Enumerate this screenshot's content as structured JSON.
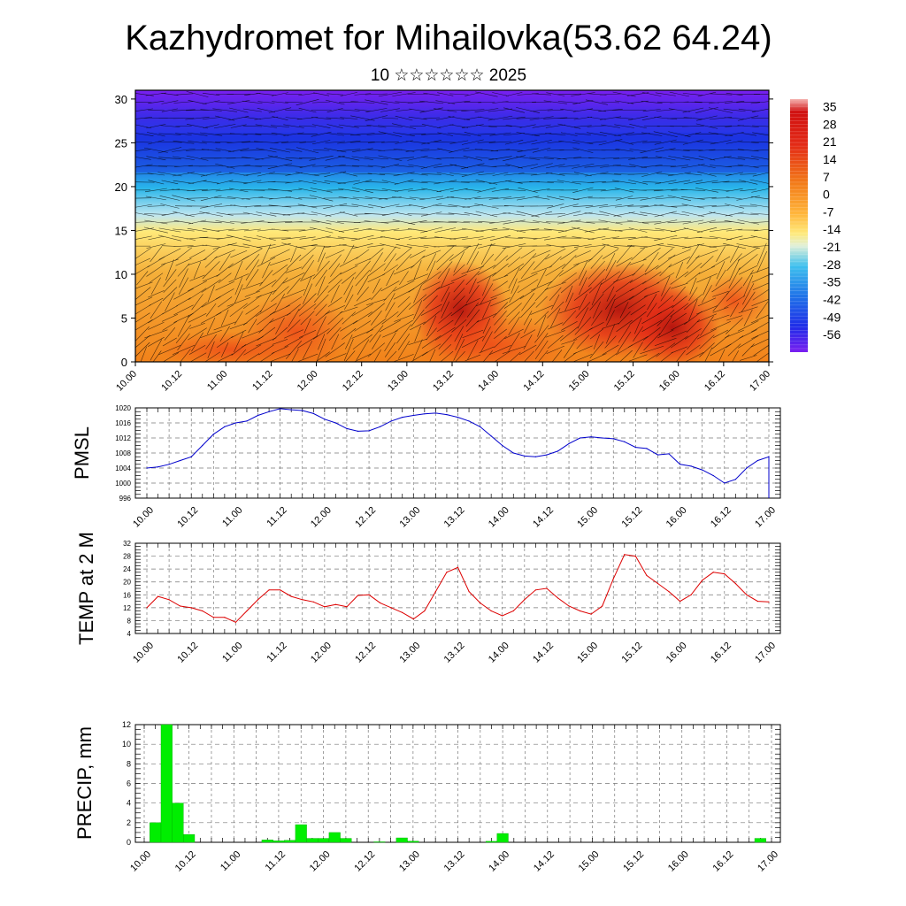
{
  "header": {
    "title": "Kazhydromet for Mihailovka(53.62 64.24)",
    "subtitle": "10 ☆☆☆☆☆☆ 2025"
  },
  "chart_data": [
    {
      "type": "heatmap",
      "id": "cross-section",
      "x_ticks": [
        "10.00",
        "10.12",
        "11.00",
        "11.12",
        "12.00",
        "12.12",
        "13.00",
        "13.12",
        "14.00",
        "14.12",
        "15.00",
        "15.12",
        "16.00",
        "16.12",
        "17.00"
      ],
      "y_ticks": [
        0,
        5,
        10,
        15,
        20,
        25,
        30
      ],
      "ylim": [
        0,
        31
      ],
      "colorbar_labels": [
        "35",
        "28",
        "21",
        "14",
        "7",
        "0",
        "-7",
        "-14",
        "-21",
        "-28",
        "-35",
        "-42",
        "-49",
        "-56"
      ],
      "colorbar_range": [
        -63,
        38
      ],
      "colors": {
        "cold": "#7a1ff0",
        "blue": "#1f3be8",
        "cyan": "#29b6ea",
        "yellow": "#ffe979",
        "orange": "#f2821a",
        "red": "#e32a16",
        "dark_red": "#8a0a0a"
      },
      "wind_overlay": true
    },
    {
      "type": "line",
      "id": "pmsl",
      "ylabel": "PMSL",
      "color": "#0000cc",
      "x_ticks": [
        "10.00",
        "10.12",
        "11.00",
        "11.12",
        "12.00",
        "12.12",
        "13.00",
        "13.12",
        "14.00",
        "14.12",
        "15.00",
        "15.12",
        "16.00",
        "16.12",
        "17.00"
      ],
      "y_ticks": [
        996,
        1000,
        1004,
        1008,
        1012,
        1016,
        1020
      ],
      "ylim": [
        996,
        1020
      ],
      "x_hours": [
        0,
        3,
        6,
        9,
        12,
        15,
        18,
        21,
        24,
        27,
        30,
        33,
        36,
        39,
        42,
        45,
        48,
        51,
        54,
        57,
        60,
        63,
        66,
        69,
        72,
        75,
        78,
        81,
        84,
        87,
        90,
        93,
        96,
        99,
        102,
        105,
        108,
        111,
        114,
        117,
        120,
        123,
        126,
        129,
        132,
        135,
        138,
        141,
        144,
        147,
        150,
        153,
        156,
        159,
        162,
        165,
        168
      ],
      "values": [
        1004,
        1004.3,
        1005,
        1006,
        1007,
        1010,
        1013,
        1015,
        1016,
        1016.5,
        1018,
        1019,
        1019.8,
        1019.5,
        1019.3,
        1018.5,
        1017,
        1016,
        1014.5,
        1013.8,
        1013.9,
        1015,
        1016.5,
        1017.5,
        1018,
        1018.4,
        1018.6,
        1018.2,
        1017.5,
        1016.5,
        1015,
        1012.5,
        1010,
        1008,
        1007.2,
        1007,
        1007.5,
        1008.5,
        1010.5,
        1012,
        1012.3,
        1012,
        1011.8,
        1011,
        1009.5,
        1009.2,
        1007.5,
        1007.8,
        1005,
        1004.5,
        1003.5,
        1002,
        1000,
        1001,
        1004,
        1006,
        1007
      ]
    },
    {
      "type": "line",
      "id": "temp",
      "ylabel": "TEMP at 2 M",
      "color": "#dd0000",
      "x_ticks": [
        "10.00",
        "10.12",
        "11.00",
        "11.12",
        "12.00",
        "12.12",
        "13.00",
        "13.12",
        "14.00",
        "14.12",
        "15.00",
        "15.12",
        "16.00",
        "16.12",
        "17.00"
      ],
      "y_ticks": [
        4,
        8,
        12,
        16,
        20,
        24,
        28,
        32
      ],
      "ylim": [
        4,
        32
      ],
      "values": [
        12,
        15.5,
        14.5,
        12.5,
        12,
        11,
        9,
        9,
        7.5,
        11,
        14.5,
        17.5,
        17.5,
        15.5,
        14.5,
        13.8,
        12.3,
        13,
        12.3,
        15.8,
        16,
        13.5,
        12,
        10.5,
        8.5,
        11,
        17,
        23,
        24.5,
        17,
        13.5,
        11,
        9.5,
        11,
        14.5,
        17.5,
        18,
        15,
        12.5,
        11,
        10,
        12.5,
        21,
        28.5,
        28,
        22,
        19.5,
        17,
        14,
        16,
        20.5,
        23,
        22.5,
        19.5,
        16,
        14,
        13.8
      ]
    },
    {
      "type": "bar",
      "id": "precip",
      "ylabel": "PRECIP, mm",
      "color": "#00ee00",
      "x_ticks": [
        "10.00",
        "10.12",
        "11.00",
        "11.12",
        "12.00",
        "12.12",
        "13.00",
        "13.12",
        "14.00",
        "14.12",
        "15.00",
        "15.12",
        "16.00",
        "16.12",
        "17.00"
      ],
      "y_ticks": [
        0,
        2,
        4,
        6,
        8,
        10,
        12
      ],
      "ylim": [
        0,
        12
      ],
      "bars": [
        {
          "x": 3,
          "value": 2.0
        },
        {
          "x": 6,
          "value": 12.0
        },
        {
          "x": 9,
          "value": 4.0
        },
        {
          "x": 12,
          "value": 0.8
        },
        {
          "x": 33,
          "value": 0.25
        },
        {
          "x": 36,
          "value": 0.15
        },
        {
          "x": 39,
          "value": 0.2
        },
        {
          "x": 42,
          "value": 1.8
        },
        {
          "x": 45,
          "value": 0.4
        },
        {
          "x": 48,
          "value": 0.4
        },
        {
          "x": 51,
          "value": 1.0
        },
        {
          "x": 54,
          "value": 0.4
        },
        {
          "x": 63,
          "value": 0.05
        },
        {
          "x": 69,
          "value": 0.45
        },
        {
          "x": 72,
          "value": 0.12
        },
        {
          "x": 93,
          "value": 0.1
        },
        {
          "x": 96,
          "value": 0.9
        },
        {
          "x": 165,
          "value": 0.4
        }
      ]
    }
  ]
}
